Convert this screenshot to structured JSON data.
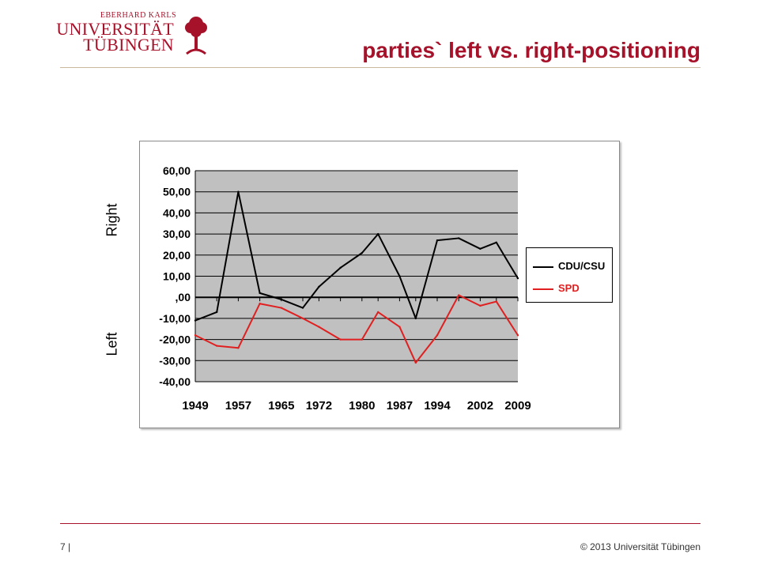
{
  "header": {
    "logo_line_small": "EBERHARD KARLS",
    "logo_line_1": "UNIVERSITÄT",
    "logo_line_2": "TÜBINGEN",
    "title": "parties` left vs. right-positioning"
  },
  "side_labels": {
    "top": "Right",
    "bottom": "Left"
  },
  "footer": {
    "page": "7 |",
    "copyright": "© 2013 Universität Tübingen"
  },
  "colors": {
    "brand": "#a5122a",
    "plot_bg": "#c0c0c0",
    "cdu": "#000000",
    "spd": "#e02020"
  },
  "chart_data": {
    "type": "line",
    "ylim": [
      -40,
      60
    ],
    "yticks": [
      "60,00",
      "50,00",
      "40,00",
      "30,00",
      "20,00",
      "10,00",
      ",00",
      "-10,00",
      "-20,00",
      "-30,00",
      "-40,00"
    ],
    "x_tick_labels": [
      "1949",
      "1957",
      "1965",
      "1972",
      "1980",
      "1987",
      "1994",
      "2002",
      "2009"
    ],
    "grid": true,
    "legend_position": "right",
    "x": [
      1949,
      1953,
      1957,
      1961,
      1965,
      1969,
      1972,
      1976,
      1980,
      1983,
      1987,
      1990,
      1994,
      1998,
      2002,
      2005,
      2009
    ],
    "series": [
      {
        "name": "CDU/CSU",
        "color": "#000000",
        "values": [
          -11,
          -7,
          50,
          2,
          -1,
          -5,
          5,
          14,
          21,
          30,
          10,
          -10,
          27,
          28,
          23,
          26,
          9
        ]
      },
      {
        "name": "SPD",
        "color": "#e02020",
        "values": [
          -18,
          -23,
          -24,
          -3,
          -5,
          -10,
          -14,
          -20,
          -20,
          -7,
          -14,
          -31,
          -18,
          1,
          -4,
          -2,
          -18
        ]
      }
    ]
  }
}
